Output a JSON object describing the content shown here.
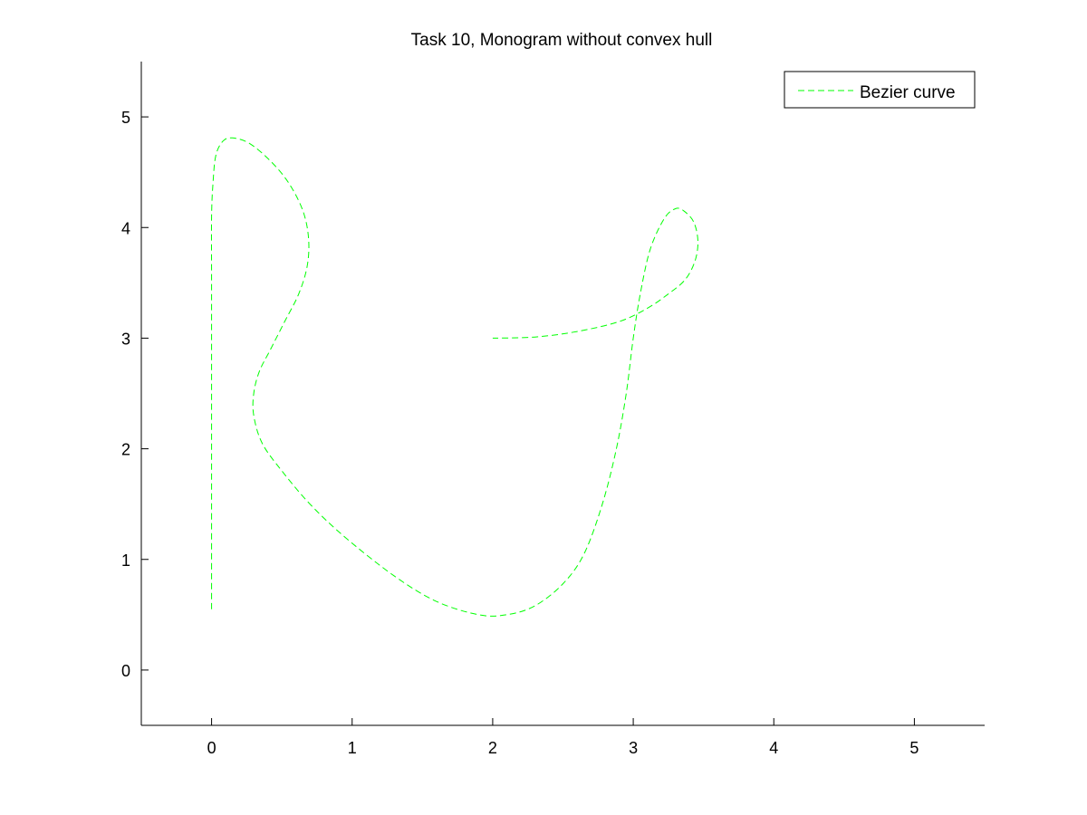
{
  "chart_data": {
    "type": "line",
    "title": "Task 10, Monogram without convex hull",
    "xlabel": "",
    "ylabel": "",
    "xlim": [
      -0.5,
      5.5
    ],
    "ylim": [
      -0.5,
      5.5
    ],
    "xticks": [
      0,
      1,
      2,
      3,
      4,
      5
    ],
    "yticks": [
      0,
      1,
      2,
      3,
      4,
      5
    ],
    "xtick_labels": [
      "0",
      "1",
      "2",
      "3",
      "4",
      "5"
    ],
    "ytick_labels": [
      "0",
      "1",
      "2",
      "3",
      "4",
      "5"
    ],
    "grid": false,
    "legend": {
      "position": "top-right",
      "entries": [
        "Bezier curve"
      ]
    },
    "series": [
      {
        "name": "Bezier curve",
        "color": "#00ff00",
        "line_style": "dashed",
        "segments": [
          [
            [
              0.0,
              0.55
            ],
            [
              0.0,
              1.5
            ],
            [
              0.0,
              2.5
            ],
            [
              0.0,
              3.5
            ],
            [
              0.0,
              4.1
            ],
            [
              0.01,
              4.4
            ],
            [
              0.03,
              4.65
            ],
            [
              0.08,
              4.78
            ],
            [
              0.15,
              4.81
            ],
            [
              0.27,
              4.76
            ],
            [
              0.42,
              4.6
            ],
            [
              0.55,
              4.4
            ],
            [
              0.65,
              4.15
            ],
            [
              0.69,
              3.9
            ],
            [
              0.68,
              3.65
            ],
            [
              0.62,
              3.4
            ],
            [
              0.52,
              3.15
            ],
            [
              0.42,
              2.9
            ],
            [
              0.34,
              2.7
            ],
            [
              0.3,
              2.5
            ],
            [
              0.3,
              2.3
            ],
            [
              0.36,
              2.05
            ],
            [
              0.5,
              1.8
            ],
            [
              0.7,
              1.5
            ],
            [
              0.95,
              1.2
            ],
            [
              1.3,
              0.85
            ],
            [
              1.6,
              0.62
            ],
            [
              1.9,
              0.5
            ],
            [
              2.1,
              0.5
            ],
            [
              2.3,
              0.58
            ],
            [
              2.5,
              0.78
            ],
            [
              2.65,
              1.05
            ],
            [
              2.78,
              1.5
            ],
            [
              2.88,
              2.0
            ],
            [
              2.95,
              2.5
            ],
            [
              3.0,
              3.0
            ],
            [
              3.05,
              3.4
            ],
            [
              3.12,
              3.8
            ],
            [
              3.22,
              4.08
            ],
            [
              3.3,
              4.17
            ],
            [
              3.36,
              4.15
            ],
            [
              3.43,
              4.05
            ],
            [
              3.46,
              3.88
            ],
            [
              3.44,
              3.7
            ],
            [
              3.37,
              3.53
            ],
            [
              3.25,
              3.4
            ],
            [
              3.1,
              3.27
            ],
            [
              2.9,
              3.15
            ],
            [
              2.6,
              3.06
            ],
            [
              2.3,
              3.01
            ],
            [
              2.0,
              3.0
            ]
          ]
        ]
      }
    ]
  }
}
